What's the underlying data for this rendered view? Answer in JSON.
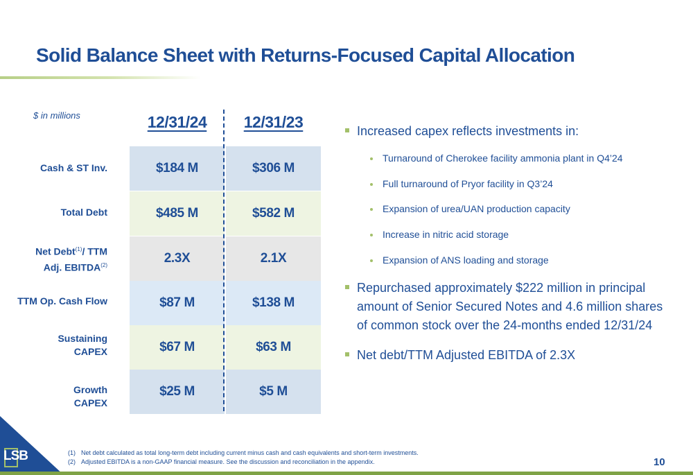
{
  "title": "Solid Balance Sheet with Returns-Focused Capital Allocation",
  "units_note": "$ in millions",
  "columns": [
    "12/31/24",
    "12/31/23"
  ],
  "rows": [
    {
      "label": "Cash & ST Inv.",
      "values": [
        "$184 M",
        "$306 M"
      ],
      "color": "#d5e1ee"
    },
    {
      "label": "Total Debt",
      "values": [
        "$485 M",
        "$582 M"
      ],
      "color": "#eef4e2"
    },
    {
      "label_line1_a": "Net Debt",
      "label_line1_sup": "(1)",
      "label_line1_b": "/ TTM",
      "label_line2_a": "Adj. EBITDA",
      "label_line2_sup": "(2)",
      "values": [
        "2.3X",
        "2.1X"
      ],
      "color": "#e7e7e7"
    },
    {
      "label": "TTM Op. Cash Flow",
      "values": [
        "$87 M",
        "$138 M"
      ],
      "color": "#dce9f6"
    },
    {
      "label_line1": "Sustaining",
      "label_line2": "CAPEX",
      "values": [
        "$67 M",
        "$63 M"
      ],
      "color": "#eef4e2"
    },
    {
      "label_line1": "Growth",
      "label_line2": "CAPEX",
      "values": [
        "$25 M",
        "$5 M"
      ],
      "color": "#d5e1ee"
    }
  ],
  "bullets": [
    {
      "text": "Increased capex reflects investments in:",
      "sub": [
        "Turnaround of Cherokee facility ammonia plant in Q4’24",
        "Full turnaround of Pryor facility in Q3’24",
        "Expansion of urea/UAN production capacity",
        "Increase in nitric acid storage",
        "Expansion of ANS loading and storage"
      ]
    },
    {
      "text": "Repurchased approximately $222 million in principal amount of Senior Secured Notes and 4.6 million shares of common stock over the 24-months ended 12/31/24"
    },
    {
      "text": "Net debt/TTM Adjusted EBITDA of 2.3X"
    }
  ],
  "footnotes": [
    {
      "num": "(1)",
      "text": "Net debt calculated as total long-term debt including current  minus cash and cash equivalents and short-term investments."
    },
    {
      "num": "(2)",
      "text": "Adjusted EBITDA is a non-GAAP financial measure.  See the discussion and reconciliation in the appendix."
    }
  ],
  "page_number": "10",
  "logo_text": "LSB",
  "colors": {
    "brand_blue": "#1f4e96",
    "accent_green": "#a3c06a"
  }
}
